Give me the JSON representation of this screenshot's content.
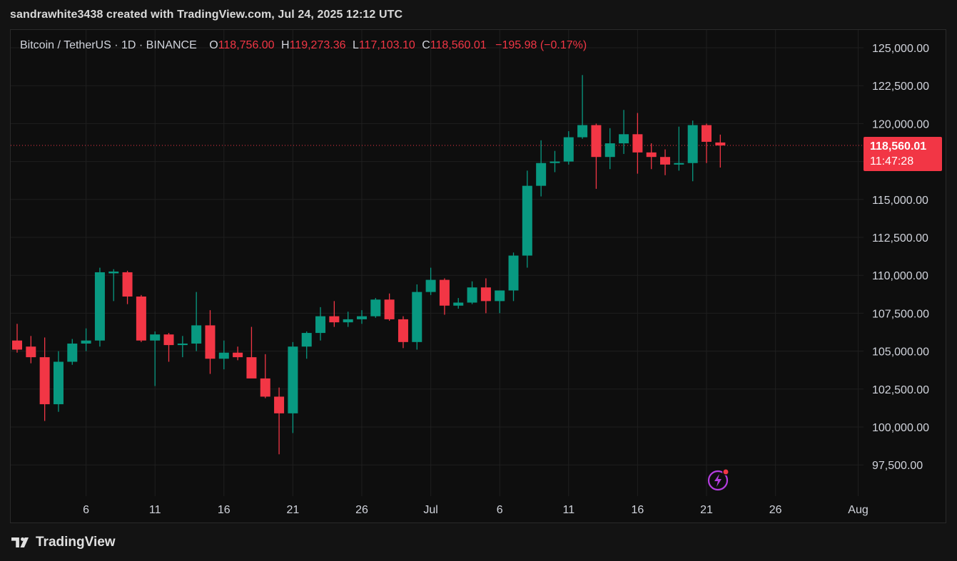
{
  "header": {
    "caption": "sandrawhite3438 created with TradingView.com, Jul 24, 2025 12:12 UTC"
  },
  "legend": {
    "symbol": "Bitcoin / TetherUS · 1D · BINANCE",
    "o_label": "O",
    "o_value": "118,756.00",
    "h_label": "H",
    "h_value": "119,273.36",
    "l_label": "L",
    "l_value": "117,103.10",
    "c_label": "C",
    "c_value": "118,560.01",
    "change": "−195.98 (−0.17%)"
  },
  "price_tag": {
    "price": "118,560.01",
    "countdown": "11:47:28"
  },
  "footer": {
    "brand": "TradingView"
  },
  "colors": {
    "up": "#089981",
    "down": "#f23645",
    "grid": "#1f1f1f",
    "background": "#0e0e0e",
    "axis_text": "#d1d4dc"
  },
  "icons": [
    "tradingview-logo-icon",
    "lightning-alert-icon"
  ],
  "chart_data": {
    "type": "candlestick",
    "title": "Bitcoin / TetherUS · 1D · BINANCE",
    "ylim": [
      95000,
      126000
    ],
    "y_ticks": [
      97500,
      100000,
      102500,
      105000,
      107500,
      110000,
      112500,
      115000,
      117500,
      120000,
      122500,
      125000
    ],
    "y_tick_labels": [
      "97,500.00",
      "100,000.00",
      "102,500.00",
      "105,000.00",
      "107,500.00",
      "110,000.00",
      "112,500.00",
      "115,000.00",
      "117,500.00",
      "120,000.00",
      "122,500.00",
      "125,000.00"
    ],
    "x_tick_labels": [
      {
        "day": 6,
        "label": "6"
      },
      {
        "day": 11,
        "label": "11"
      },
      {
        "day": 16,
        "label": "16"
      },
      {
        "day": 21,
        "label": "21"
      },
      {
        "day": 26,
        "label": "26"
      },
      {
        "day": 31,
        "label": "Jul"
      },
      {
        "day": 36,
        "label": "6"
      },
      {
        "day": 41,
        "label": "11"
      },
      {
        "day": 46,
        "label": "16"
      },
      {
        "day": 51,
        "label": "21"
      },
      {
        "day": 56,
        "label": "26"
      },
      {
        "day": 62,
        "label": "Aug"
      }
    ],
    "last_price": 118560.01,
    "grid": true,
    "candles": [
      {
        "date": "Jun 2",
        "o": 105700,
        "h": 106800,
        "l": 104900,
        "c": 105100
      },
      {
        "date": "Jun 3",
        "o": 105300,
        "h": 106000,
        "l": 104200,
        "c": 104600
      },
      {
        "date": "Jun 4",
        "o": 104600,
        "h": 105900,
        "l": 100400,
        "c": 101500
      },
      {
        "date": "Jun 5",
        "o": 101500,
        "h": 105000,
        "l": 101000,
        "c": 104300
      },
      {
        "date": "Jun 6",
        "o": 104300,
        "h": 105800,
        "l": 104100,
        "c": 105500
      },
      {
        "date": "Jun 7",
        "o": 105500,
        "h": 106500,
        "l": 105000,
        "c": 105700
      },
      {
        "date": "Jun 8",
        "o": 105700,
        "h": 110500,
        "l": 105300,
        "c": 110200
      },
      {
        "date": "Jun 9",
        "o": 110200,
        "h": 110400,
        "l": 108300,
        "c": 110200
      },
      {
        "date": "Jun 10",
        "o": 110200,
        "h": 110300,
        "l": 108100,
        "c": 108600
      },
      {
        "date": "Jun 11",
        "o": 108600,
        "h": 108700,
        "l": 105600,
        "c": 105700
      },
      {
        "date": "Jun 12",
        "o": 105700,
        "h": 106300,
        "l": 102700,
        "c": 106100
      },
      {
        "date": "Jun 13",
        "o": 106100,
        "h": 106200,
        "l": 104300,
        "c": 105400
      },
      {
        "date": "Jun 14",
        "o": 105400,
        "h": 106000,
        "l": 104600,
        "c": 105500
      },
      {
        "date": "Jun 15",
        "o": 105500,
        "h": 108900,
        "l": 105000,
        "c": 106700
      },
      {
        "date": "Jun 16",
        "o": 106700,
        "h": 107700,
        "l": 103500,
        "c": 104500
      },
      {
        "date": "Jun 17",
        "o": 104500,
        "h": 105700,
        "l": 103800,
        "c": 104900
      },
      {
        "date": "Jun 18",
        "o": 104900,
        "h": 105300,
        "l": 104400,
        "c": 104600
      },
      {
        "date": "Jun 19",
        "o": 104600,
        "h": 106600,
        "l": 103300,
        "c": 103200
      },
      {
        "date": "Jun 20",
        "o": 103200,
        "h": 104800,
        "l": 101900,
        "c": 102000
      },
      {
        "date": "Jun 21",
        "o": 102000,
        "h": 102600,
        "l": 98200,
        "c": 100900
      },
      {
        "date": "Jun 22",
        "o": 100900,
        "h": 105600,
        "l": 99600,
        "c": 105300
      },
      {
        "date": "Jun 23",
        "o": 105300,
        "h": 106300,
        "l": 104500,
        "c": 106200
      },
      {
        "date": "Jun 24",
        "o": 106200,
        "h": 107900,
        "l": 105700,
        "c": 107300
      },
      {
        "date": "Jun 25",
        "o": 107300,
        "h": 108300,
        "l": 106600,
        "c": 106900
      },
      {
        "date": "Jun 26",
        "o": 106900,
        "h": 107600,
        "l": 106600,
        "c": 107100
      },
      {
        "date": "Jun 27",
        "o": 107100,
        "h": 107700,
        "l": 106800,
        "c": 107300
      },
      {
        "date": "Jun 28",
        "o": 107300,
        "h": 108500,
        "l": 107200,
        "c": 108400
      },
      {
        "date": "Jun 29",
        "o": 108400,
        "h": 108800,
        "l": 107000,
        "c": 107100
      },
      {
        "date": "Jun 30",
        "o": 107100,
        "h": 107300,
        "l": 105200,
        "c": 105600
      },
      {
        "date": "Jul 1",
        "o": 105600,
        "h": 109400,
        "l": 105100,
        "c": 108900
      },
      {
        "date": "Jul 2",
        "o": 108900,
        "h": 110500,
        "l": 108700,
        "c": 109700
      },
      {
        "date": "Jul 3",
        "o": 109700,
        "h": 109800,
        "l": 107400,
        "c": 108000
      },
      {
        "date": "Jul 4",
        "o": 108000,
        "h": 108500,
        "l": 107800,
        "c": 108200
      },
      {
        "date": "Jul 5",
        "o": 108200,
        "h": 109600,
        "l": 108100,
        "c": 109200
      },
      {
        "date": "Jul 6",
        "o": 109200,
        "h": 109800,
        "l": 107500,
        "c": 108300
      },
      {
        "date": "Jul 7",
        "o": 108300,
        "h": 109000,
        "l": 107500,
        "c": 109000
      },
      {
        "date": "Jul 8",
        "o": 109000,
        "h": 111500,
        "l": 108300,
        "c": 111300
      },
      {
        "date": "Jul 9",
        "o": 111300,
        "h": 116900,
        "l": 110500,
        "c": 115900
      },
      {
        "date": "Jul 10",
        "o": 115900,
        "h": 118900,
        "l": 115200,
        "c": 117400
      },
      {
        "date": "Jul 11",
        "o": 117400,
        "h": 118200,
        "l": 116800,
        "c": 117500
      },
      {
        "date": "Jul 12",
        "o": 117500,
        "h": 119500,
        "l": 117300,
        "c": 119100
      },
      {
        "date": "Jul 13",
        "o": 119100,
        "h": 123200,
        "l": 119000,
        "c": 119900
      },
      {
        "date": "Jul 14",
        "o": 119900,
        "h": 120000,
        "l": 115700,
        "c": 117800
      },
      {
        "date": "Jul 15",
        "o": 117800,
        "h": 119700,
        "l": 117000,
        "c": 118700
      },
      {
        "date": "Jul 16",
        "o": 118700,
        "h": 120900,
        "l": 118000,
        "c": 119300
      },
      {
        "date": "Jul 17",
        "o": 119300,
        "h": 120700,
        "l": 116700,
        "c": 118100
      },
      {
        "date": "Jul 18",
        "o": 118100,
        "h": 118700,
        "l": 117000,
        "c": 117800
      },
      {
        "date": "Jul 19",
        "o": 117800,
        "h": 118300,
        "l": 116600,
        "c": 117300
      },
      {
        "date": "Jul 20",
        "o": 117300,
        "h": 119800,
        "l": 116900,
        "c": 117400
      },
      {
        "date": "Jul 21",
        "o": 117400,
        "h": 120200,
        "l": 116200,
        "c": 119900
      },
      {
        "date": "Jul 22",
        "o": 119900,
        "h": 120000,
        "l": 117400,
        "c": 118800
      },
      {
        "date": "Jul 23",
        "o": 118756,
        "h": 119273.36,
        "l": 117103.1,
        "c": 118560.01
      }
    ]
  }
}
